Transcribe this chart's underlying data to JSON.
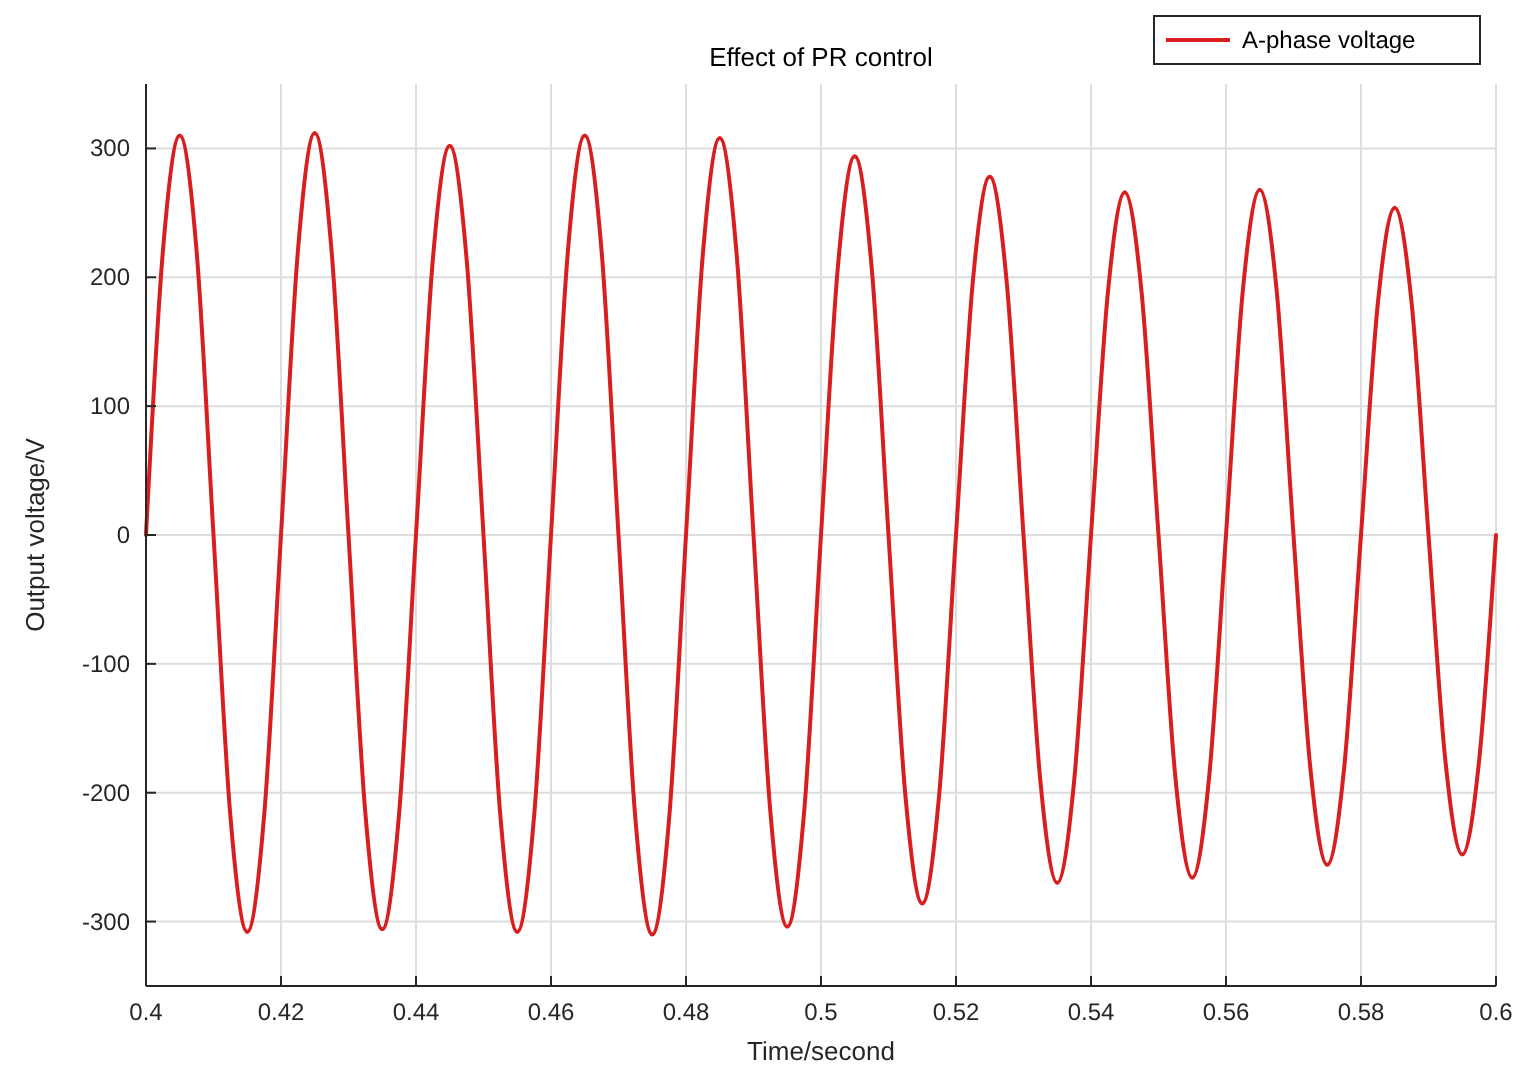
{
  "chart_data": {
    "type": "line",
    "title": "Effect of PR control",
    "xlabel": "Time/second",
    "ylabel": "Output voltage/V",
    "xlim": [
      0.4,
      0.6
    ],
    "xticks": [
      0.4,
      0.42,
      0.44,
      0.46,
      0.48,
      0.5,
      0.52,
      0.54,
      0.56,
      0.58,
      0.6
    ],
    "ylim": [
      -350,
      350
    ],
    "yticks": [
      -300,
      -200,
      -100,
      0,
      100,
      200,
      300
    ],
    "grid": true,
    "legend": "top right",
    "marker": "none",
    "line_style": "solid",
    "series": [
      {
        "name": "A-phase voltage",
        "color": "#d81e1e",
        "x": [
          0.4,
          0.4025,
          0.405,
          0.4075,
          0.41,
          0.4125,
          0.415,
          0.4175,
          0.42,
          0.4225,
          0.425,
          0.4275,
          0.43,
          0.4325,
          0.435,
          0.4375,
          0.44,
          0.4425,
          0.445,
          0.4475,
          0.45,
          0.4525,
          0.455,
          0.4575,
          0.46,
          0.4625,
          0.465,
          0.4675,
          0.47,
          0.4725,
          0.475,
          0.4775,
          0.48,
          0.4825,
          0.485,
          0.4875,
          0.49,
          0.4925,
          0.495,
          0.4975,
          0.5,
          0.5025,
          0.505,
          0.5075,
          0.51,
          0.5125,
          0.515,
          0.5175,
          0.52,
          0.5225,
          0.525,
          0.5275,
          0.53,
          0.5325,
          0.535,
          0.5375,
          0.54,
          0.5425,
          0.545,
          0.5475,
          0.55,
          0.5525,
          0.555,
          0.5575,
          0.56,
          0.5625,
          0.565,
          0.5675,
          0.57,
          0.5725,
          0.575,
          0.5775,
          0.58,
          0.5825,
          0.585,
          0.5875,
          0.59,
          0.5925,
          0.595,
          0.5975,
          0.6
        ],
        "values": [
          0,
          220,
          310,
          220,
          0,
          -218,
          -308,
          -218,
          0,
          220,
          312,
          220,
          0,
          -216,
          -306,
          -216,
          0,
          214,
          302,
          214,
          0,
          -218,
          -308,
          -218,
          0,
          220,
          310,
          220,
          0,
          -220,
          -310,
          -220,
          0,
          218,
          308,
          218,
          0,
          -215,
          -304,
          -215,
          0,
          208,
          294,
          208,
          0,
          -202,
          -286,
          -202,
          0,
          197,
          278,
          197,
          0,
          -191,
          -270,
          -191,
          0,
          188,
          266,
          188,
          0,
          -188,
          -266,
          -188,
          0,
          190,
          268,
          190,
          0,
          -181,
          -256,
          -181,
          0,
          180,
          254,
          180,
          0,
          -175,
          -248,
          -175,
          0
        ]
      }
    ]
  }
}
